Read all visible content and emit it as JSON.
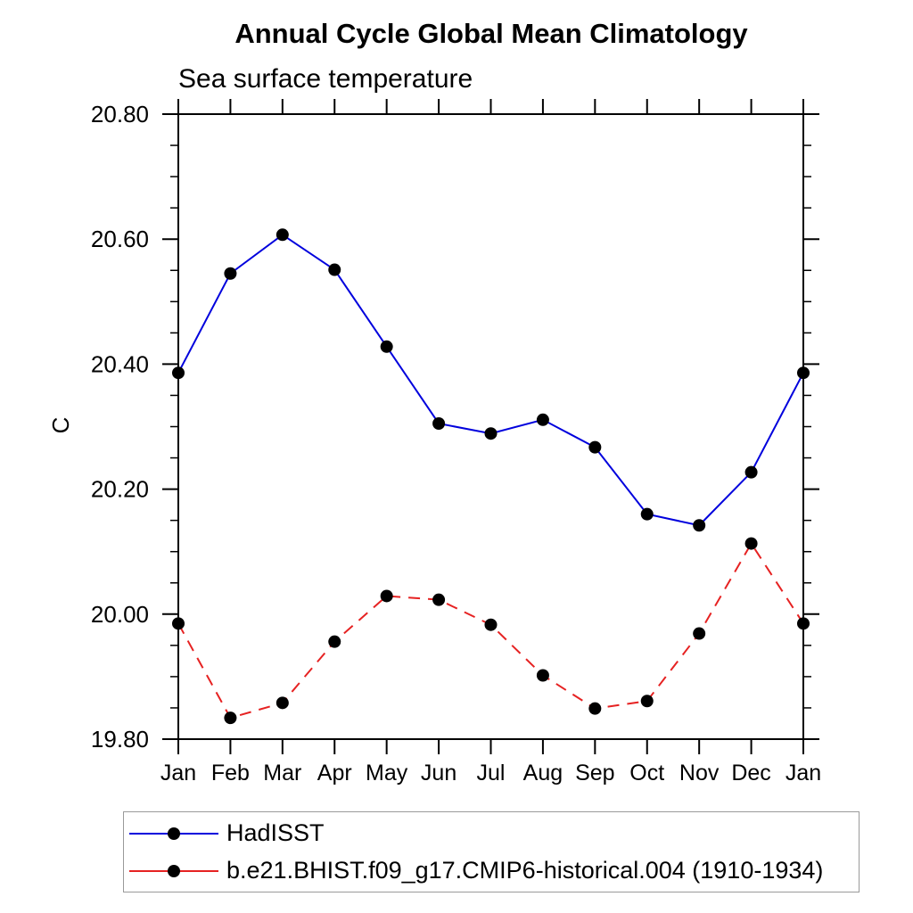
{
  "title": "Annual Cycle Global Mean Climatology",
  "subtitle": "Sea surface temperature",
  "y_axis_title": "C",
  "chart_data": {
    "type": "line",
    "title": "Annual Cycle Global Mean Climatology",
    "subtitle": "Sea surface temperature",
    "ylabel": "C",
    "xlabel": "",
    "categories": [
      "Jan",
      "Feb",
      "Mar",
      "Apr",
      "May",
      "Jun",
      "Jul",
      "Aug",
      "Sep",
      "Oct",
      "Nov",
      "Dec",
      "Jan"
    ],
    "ylim": [
      19.8,
      20.8
    ],
    "ytick_major_step": 0.2,
    "ytick_minor_step": 0.05,
    "ytick_labels": [
      "19.80",
      "20.00",
      "20.20",
      "20.40",
      "20.60",
      "20.80"
    ],
    "grid": false,
    "legend_position": "bottom-left",
    "axis_color": "#000000",
    "marker": "filled-circle",
    "marker_color": "#000000",
    "series": [
      {
        "name": "HadISST",
        "color": "#0000dd",
        "line_style": "solid",
        "dash": "none",
        "values": [
          20.386,
          20.545,
          20.607,
          20.551,
          20.428,
          20.305,
          20.289,
          20.311,
          20.267,
          20.16,
          20.142,
          20.227,
          20.386
        ]
      },
      {
        "name": "b.e21.BHIST.f09_g17.CMIP6-historical.004 (1910-1934)",
        "color": "#e62222",
        "line_style": "dashed",
        "dash": "13 9",
        "values": [
          19.985,
          19.834,
          19.858,
          19.956,
          20.029,
          20.023,
          19.983,
          19.902,
          19.849,
          19.861,
          19.969,
          20.113,
          19.985
        ]
      }
    ]
  }
}
